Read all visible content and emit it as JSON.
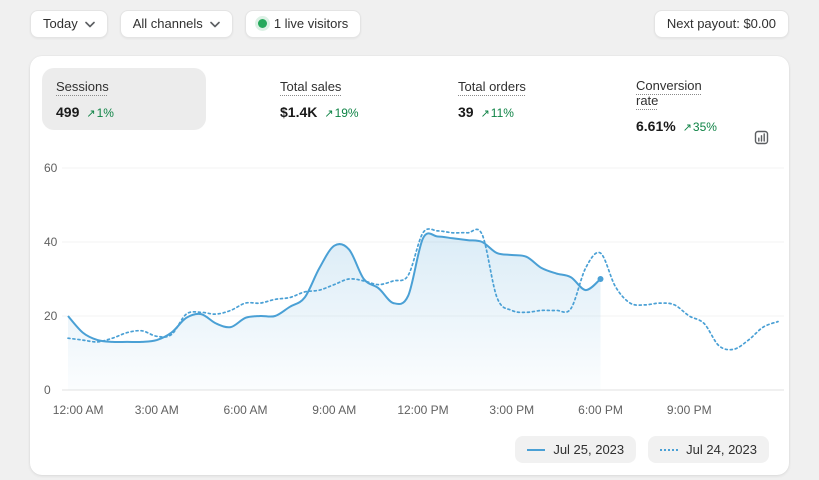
{
  "topbar": {
    "date_range": "Today",
    "channel_filter": "All channels",
    "live_visitors": "1 live visitors",
    "next_payout": "Next payout: $0.00"
  },
  "icons": {
    "increase_arrow": "↗"
  },
  "metrics": [
    {
      "label": "Sessions",
      "value": "499",
      "delta": "1%",
      "selected": true
    },
    {
      "label": "Total sales",
      "value": "$1.4K",
      "delta": "19%",
      "selected": false
    },
    {
      "label": "Total orders",
      "value": "39",
      "delta": "11%",
      "selected": false
    },
    {
      "label": "Conversion rate",
      "value": "6.61%",
      "delta": "35%",
      "selected": false
    }
  ],
  "chart_data": {
    "type": "line",
    "title": "Sessions",
    "xlabel": "",
    "ylabel": "",
    "xlim": [
      0,
      24
    ],
    "ylim": [
      0,
      60
    ],
    "y_ticks": [
      0,
      20,
      40,
      60
    ],
    "x_axis_labels": [
      "12:00 AM",
      "3:00 AM",
      "6:00 AM",
      "9:00 AM",
      "12:00 PM",
      "3:00 PM",
      "6:00 PM",
      "9:00 PM"
    ],
    "x_tick_interval_hours": 3,
    "grid": "horizontal-faint",
    "legend_position": "bottom-right",
    "series": [
      {
        "name": "Jul 25, 2023",
        "style": "solid",
        "color": "#4aa0d5",
        "x_start": 0,
        "x_step": 0.5,
        "values": [
          20,
          15.5,
          13.5,
          13,
          13,
          13,
          13.5,
          15.5,
          19.5,
          20.5,
          18,
          17,
          19.5,
          20,
          20,
          22.5,
          25,
          33,
          39,
          38,
          30,
          27.5,
          23.5,
          25.5,
          41,
          41.5,
          41,
          40.5,
          40,
          37,
          36.5,
          36,
          33,
          31.5,
          30.5,
          27,
          30
        ]
      },
      {
        "name": "Jul 24, 2023",
        "style": "dotted",
        "color": "#4aa0d5",
        "x_start": 0,
        "x_step": 0.5,
        "values": [
          14,
          13.5,
          13,
          14,
          15.5,
          16,
          14.5,
          15,
          20.5,
          21,
          20.5,
          21.5,
          23.5,
          23.5,
          24.5,
          25,
          26.5,
          27,
          28.5,
          30,
          29.5,
          28.5,
          29.5,
          31,
          42.5,
          43,
          42.5,
          42.5,
          42,
          25,
          21.5,
          21,
          21.5,
          21.5,
          22,
          33,
          37,
          28,
          23.5,
          23,
          23.5,
          23,
          20,
          18,
          12,
          11,
          13.5,
          17,
          18.5
        ]
      }
    ]
  },
  "colors": {
    "accent_blue": "#4aa0d5",
    "success_green": "#0e8345",
    "live_dot_green": "#26a95c",
    "page_bg": "#f0f0f0",
    "card_bg": "#ffffff"
  }
}
